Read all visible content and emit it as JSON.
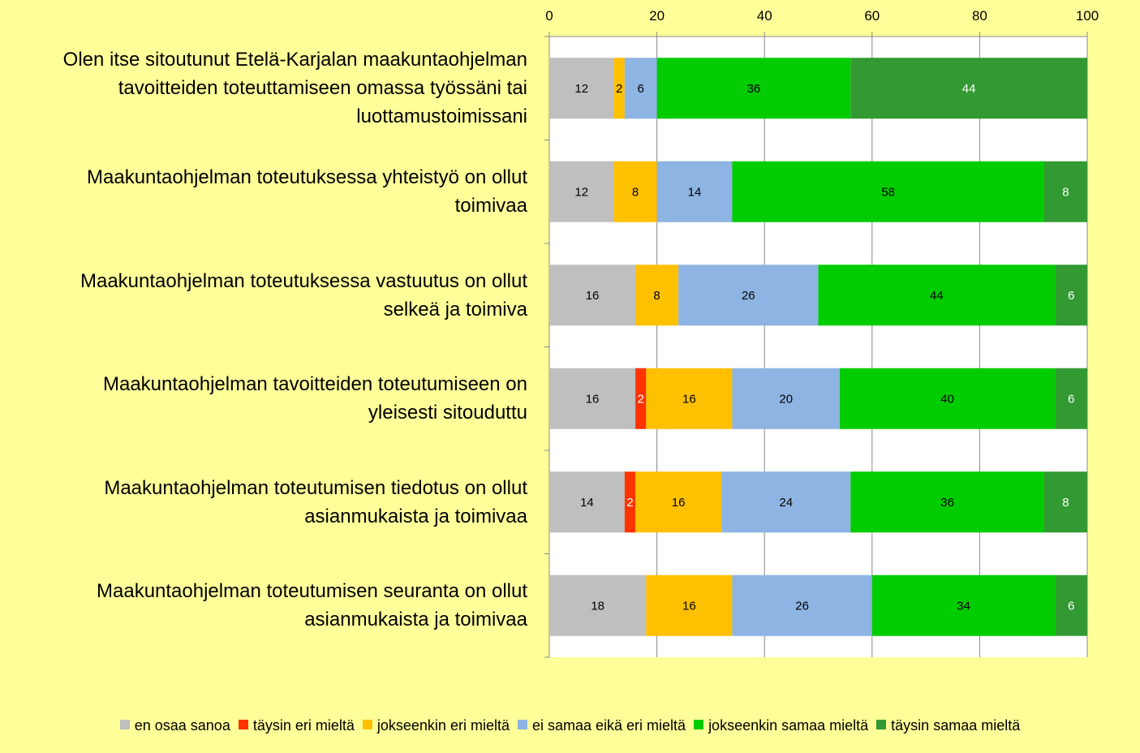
{
  "chart_data": {
    "type": "bar",
    "orientation": "horizontal",
    "stacked": true,
    "categories": [
      "Olen itse sitoutunut Etelä-Karjalan maakuntaohjelman tavoitteiden toteuttamiseen omassa työssäni tai luottamustoimissani",
      "Maakuntaohjelman toteutuksessa yhteistyö on ollut toimivaa",
      "Maakuntaohjelman toteutuksessa vastuutus on ollut selkeä ja toimiva",
      "Maakuntaohjelman tavoitteiden toteutumiseen on yleisesti sitouduttu",
      "Maakuntaohjelman toteutumisen tiedotus on ollut asianmukaista ja toimivaa",
      "Maakuntaohjelman toteutumisen seuranta on ollut asianmukaista ja toimivaa"
    ],
    "category_lines": [
      [
        "Olen itse sitoutunut Etelä-Karjalan maakuntaohjelman",
        "tavoitteiden toteuttamiseen omassa työssäni tai",
        "luottamustoimissani"
      ],
      [
        "Maakuntaohjelman toteutuksessa yhteistyö on ollut",
        "toimivaa"
      ],
      [
        "Maakuntaohjelman toteutuksessa vastuutus on ollut",
        "selkeä ja toimiva"
      ],
      [
        "Maakuntaohjelman tavoitteiden toteutumiseen on",
        "yleisesti sitouduttu"
      ],
      [
        "Maakuntaohjelman toteutumisen tiedotus on ollut",
        "asianmukaista ja toimivaa"
      ],
      [
        "Maakuntaohjelman toteutumisen seuranta on ollut",
        "asianmukaista ja toimivaa"
      ]
    ],
    "series": [
      {
        "name": "en osaa sanoa",
        "color": "#BFBFBF",
        "label_color": "#000000",
        "values": [
          12,
          12,
          16,
          16,
          14,
          18
        ]
      },
      {
        "name": "täysin eri mieltä",
        "color": "#FF3300",
        "label_color": "#FFFFFF",
        "values": [
          0,
          0,
          0,
          2,
          2,
          0
        ]
      },
      {
        "name": "jokseenkin eri mieltä",
        "color": "#FFC000",
        "label_color": "#000000",
        "values": [
          2,
          8,
          8,
          16,
          16,
          16
        ]
      },
      {
        "name": "ei samaa eikä eri mieltä",
        "color": "#8DB4E2",
        "label_color": "#000000",
        "values": [
          6,
          14,
          26,
          20,
          24,
          26
        ]
      },
      {
        "name": "jokseenkin samaa mieltä",
        "color": "#00CC00",
        "label_color": "#000000",
        "values": [
          36,
          58,
          44,
          40,
          36,
          34
        ]
      },
      {
        "name": "täysin samaa mieltä",
        "color": "#339933",
        "label_color": "#FFFFFF",
        "values": [
          44,
          8,
          6,
          6,
          8,
          6
        ]
      }
    ],
    "xlim": [
      0,
      100
    ],
    "x_ticks": [
      0,
      20,
      40,
      60,
      80,
      100
    ],
    "x_axis_position": "top",
    "grid": true,
    "legend_position": "bottom",
    "plot_background": "#FFFFFF",
    "page_background": "#FFFF99"
  }
}
